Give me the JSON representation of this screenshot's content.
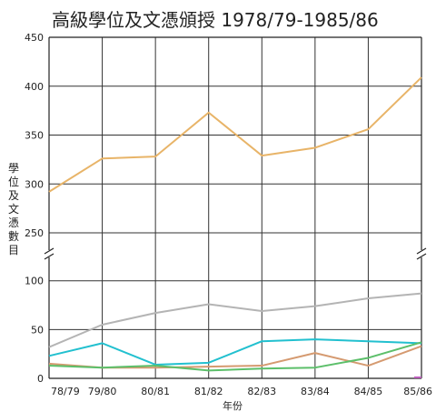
{
  "chart_data": {
    "type": "line",
    "title": "高級學位及文憑頒授 1978/79-1985/86",
    "xlabel": "年份",
    "ylabel": "學位及文憑數目",
    "categories": [
      "78/79",
      "79/80",
      "80/81",
      "81/82",
      "82/83",
      "83/84",
      "84/85",
      "85/86"
    ],
    "y_axis_break": true,
    "upper_panel": {
      "ylim": [
        250,
        450
      ],
      "yticks": [
        250,
        300,
        350,
        400,
        450
      ]
    },
    "lower_panel": {
      "ylim": [
        0,
        110
      ],
      "yticks": [
        0,
        50,
        100
      ]
    },
    "grid": true,
    "series": [
      {
        "color": "#e8b468",
        "values": [
          292,
          326,
          328,
          373,
          329,
          337,
          356,
          409
        ]
      },
      {
        "color": "#b4b4b4",
        "values": [
          32,
          55,
          67,
          76,
          69,
          74,
          82,
          87
        ]
      },
      {
        "color": "#22c0cf",
        "values": [
          23,
          36,
          14,
          16,
          38,
          40,
          38,
          36
        ]
      },
      {
        "color": "#d59a70",
        "values": [
          15,
          11,
          11,
          12,
          13,
          26,
          13,
          33
        ]
      },
      {
        "color": "#5cbf6a",
        "values": [
          13,
          11,
          13,
          8,
          10,
          11,
          21,
          37
        ]
      },
      {
        "color": "#c060c0",
        "values": [
          null,
          null,
          null,
          null,
          null,
          null,
          null,
          1
        ]
      }
    ]
  }
}
